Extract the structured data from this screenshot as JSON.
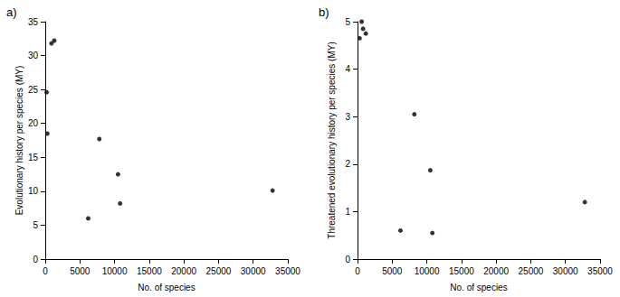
{
  "chart_data": [
    {
      "type": "scatter",
      "title": "a)",
      "x_label": "No. of species",
      "y_label": "Evolutionary history per species (MY)",
      "x": [
        900,
        1300,
        200,
        300,
        7800,
        10500,
        10800,
        32800,
        6200
      ],
      "values": [
        31.8,
        32.2,
        24.6,
        18.5,
        17.7,
        12.5,
        8.2,
        10.1,
        6.0
      ],
      "color": "#000000",
      "marker": "circle",
      "xlim": [
        0,
        35000
      ],
      "xticks": [
        0,
        5000,
        10000,
        15000,
        20000,
        25000,
        30000,
        35000
      ],
      "ylim": [
        0,
        35
      ],
      "yticks": [
        0,
        5,
        10,
        15,
        20,
        25,
        30,
        35
      ],
      "grid": false
    },
    {
      "type": "scatter",
      "title": "b)",
      "x_label": "No. of species",
      "y_label": "Threatened evolutionary history per species (MY)",
      "x": [
        300,
        600,
        800,
        1200,
        8200,
        10500,
        6200,
        10800,
        32800
      ],
      "values": [
        4.65,
        5.0,
        4.85,
        4.75,
        3.05,
        1.87,
        0.6,
        0.55,
        1.2
      ],
      "color": "#000000",
      "marker": "circle",
      "xlim": [
        0,
        35000
      ],
      "xticks": [
        0,
        5000,
        10000,
        15000,
        20000,
        25000,
        30000,
        35000
      ],
      "ylim": [
        0,
        5
      ],
      "yticks": [
        0,
        1,
        2,
        3,
        4,
        5
      ],
      "grid": false
    }
  ]
}
